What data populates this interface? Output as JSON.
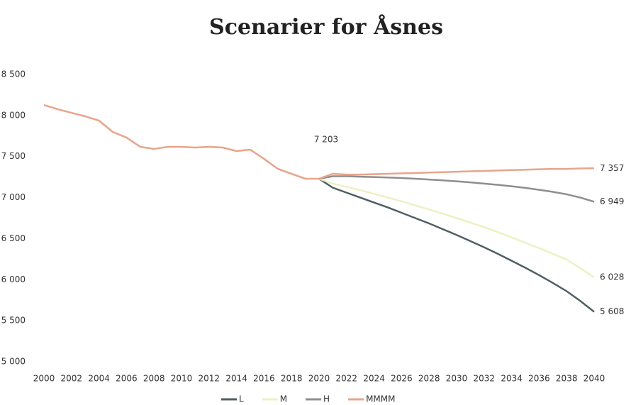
{
  "chart_data": {
    "type": "line",
    "title": "Scenarier for Åsnes",
    "x": [
      2000,
      2001,
      2002,
      2003,
      2004,
      2005,
      2006,
      2007,
      2008,
      2009,
      2010,
      2011,
      2012,
      2013,
      2014,
      2015,
      2016,
      2017,
      2018,
      2019,
      2020,
      2021,
      2022,
      2023,
      2024,
      2025,
      2026,
      2027,
      2028,
      2029,
      2030,
      2031,
      2032,
      2033,
      2034,
      2035,
      2036,
      2037,
      2038,
      2039,
      2040
    ],
    "xlim": [
      2000,
      2040
    ],
    "xticks": [
      2000,
      2002,
      2004,
      2006,
      2008,
      2010,
      2012,
      2014,
      2016,
      2018,
      2020,
      2022,
      2024,
      2026,
      2028,
      2030,
      2032,
      2034,
      2036,
      2038,
      2040
    ],
    "ylim": [
      5000,
      8500
    ],
    "yticks": [
      {
        "value": 5000,
        "label": "5 000"
      },
      {
        "value": 5500,
        "label": "5 500"
      },
      {
        "value": 6000,
        "label": "6 000"
      },
      {
        "value": 6500,
        "label": "6 500"
      },
      {
        "value": 7000,
        "label": "7 000"
      },
      {
        "value": 7500,
        "label": "7 500"
      },
      {
        "value": 8000,
        "label": "8 000"
      },
      {
        "value": 8500,
        "label": "8 500"
      }
    ],
    "annotations": [
      "7 203"
    ],
    "series": [
      {
        "name": "L",
        "color": "#4f5f63",
        "values": [
          null,
          null,
          null,
          null,
          null,
          null,
          null,
          null,
          null,
          null,
          null,
          null,
          null,
          null,
          null,
          null,
          null,
          null,
          null,
          null,
          7230,
          7120,
          7060,
          7000,
          6940,
          6880,
          6815,
          6750,
          6685,
          6615,
          6545,
          6470,
          6395,
          6315,
          6230,
          6145,
          6055,
          5960,
          5860,
          5740,
          5608
        ],
        "value_labels": [
          null,
          null,
          null,
          null,
          null,
          null,
          null,
          null,
          null,
          null,
          null,
          null,
          null,
          null,
          null,
          null,
          null,
          null,
          null,
          null,
          null,
          null,
          null,
          null,
          null,
          null,
          null,
          null,
          null,
          null,
          null,
          null,
          null,
          null,
          null,
          null,
          null,
          null,
          null,
          null,
          "5 608"
        ]
      },
      {
        "name": "M",
        "color": "#eef0c4",
        "values": [
          null,
          null,
          null,
          null,
          null,
          null,
          null,
          null,
          null,
          null,
          null,
          null,
          null,
          null,
          null,
          null,
          null,
          null,
          null,
          null,
          7230,
          7170,
          7130,
          7090,
          7045,
          7000,
          6955,
          6905,
          6855,
          6805,
          6750,
          6695,
          6640,
          6580,
          6515,
          6450,
          6385,
          6315,
          6245,
          6140,
          6028
        ],
        "value_labels": [
          null,
          null,
          null,
          null,
          null,
          null,
          null,
          null,
          null,
          null,
          null,
          null,
          null,
          null,
          null,
          null,
          null,
          null,
          null,
          null,
          null,
          null,
          null,
          null,
          null,
          null,
          null,
          null,
          null,
          null,
          null,
          null,
          null,
          null,
          null,
          null,
          null,
          null,
          null,
          null,
          "6 028"
        ]
      },
      {
        "name": "H",
        "color": "#8e8e8e",
        "values": [
          null,
          null,
          null,
          null,
          null,
          null,
          null,
          null,
          null,
          null,
          null,
          null,
          null,
          null,
          null,
          null,
          null,
          null,
          null,
          null,
          7230,
          7260,
          7260,
          7255,
          7250,
          7245,
          7238,
          7230,
          7220,
          7210,
          7198,
          7185,
          7170,
          7155,
          7138,
          7118,
          7095,
          7070,
          7040,
          7000,
          6949
        ],
        "value_labels": [
          null,
          null,
          null,
          null,
          null,
          null,
          null,
          null,
          null,
          null,
          null,
          null,
          null,
          null,
          null,
          null,
          null,
          null,
          null,
          null,
          null,
          null,
          null,
          null,
          null,
          null,
          null,
          null,
          null,
          null,
          null,
          null,
          null,
          null,
          null,
          null,
          null,
          null,
          null,
          null,
          "6 949"
        ]
      },
      {
        "name": "MMMM",
        "color": "#e8a48c",
        "values": [
          8128,
          8077,
          8033,
          7990,
          7938,
          7800,
          7731,
          7619,
          7593,
          7619,
          7619,
          7610,
          7619,
          7610,
          7567,
          7584,
          7472,
          7351,
          7290,
          7230,
          7230,
          7290,
          7280,
          7280,
          7285,
          7290,
          7295,
          7300,
          7305,
          7310,
          7315,
          7320,
          7325,
          7330,
          7335,
          7340,
          7345,
          7350,
          7350,
          7355,
          7357
        ],
        "value_labels": [
          null,
          null,
          null,
          null,
          null,
          null,
          null,
          null,
          null,
          null,
          null,
          null,
          null,
          null,
          null,
          null,
          null,
          null,
          null,
          null,
          null,
          null,
          null,
          null,
          null,
          null,
          null,
          null,
          null,
          null,
          null,
          null,
          null,
          null,
          null,
          null,
          null,
          null,
          null,
          null,
          "7 357"
        ]
      }
    ]
  }
}
